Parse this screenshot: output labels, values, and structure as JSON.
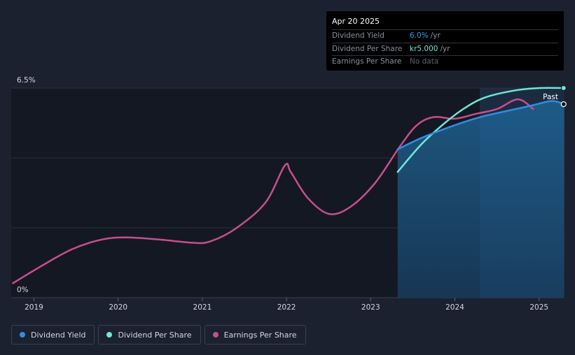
{
  "tooltip": {
    "date": "Apr 20 2025",
    "rows": [
      {
        "label": "Dividend Yield",
        "value": "6.0%",
        "unit": "/yr"
      },
      {
        "label": "Dividend Per Share",
        "value": "kr5.000",
        "unit": "/yr"
      },
      {
        "label": "Earnings Per Share",
        "value": "No data",
        "unit": ""
      }
    ]
  },
  "legend": [
    {
      "label": "Dividend Yield",
      "color": "#2d8fe3"
    },
    {
      "label": "Dividend Per Share",
      "color": "#6fe8d6"
    },
    {
      "label": "Earnings Per Share",
      "color": "#c84e8f"
    }
  ],
  "chart_data": {
    "type": "line",
    "y_max_label": "6.5%",
    "y_min_label": "0%",
    "ylim": [
      0,
      6.5
    ],
    "xlim": [
      2018.75,
      2025.3
    ],
    "x_ticks": [
      "2019",
      "2020",
      "2021",
      "2022",
      "2023",
      "2024",
      "2025"
    ],
    "past_label": "Past",
    "grid": true,
    "forecast_start": 2024.3,
    "series": [
      {
        "name": "Dividend Yield",
        "color": "#2d8fe3",
        "points": [
          [
            2023.32,
            4.6
          ],
          [
            2023.6,
            4.95
          ],
          [
            2024.0,
            5.35
          ],
          [
            2024.3,
            5.6
          ],
          [
            2024.6,
            5.78
          ],
          [
            2024.9,
            5.95
          ],
          [
            2025.15,
            6.1
          ],
          [
            2025.3,
            6.0
          ]
        ]
      },
      {
        "name": "Dividend Per Share",
        "color": "#6fe8d6",
        "points": [
          [
            2023.32,
            3.9
          ],
          [
            2023.6,
            4.75
          ],
          [
            2023.85,
            5.35
          ],
          [
            2024.1,
            5.85
          ],
          [
            2024.35,
            6.2
          ],
          [
            2024.7,
            6.42
          ],
          [
            2025.0,
            6.5
          ],
          [
            2025.3,
            6.5
          ]
        ]
      },
      {
        "name": "Earnings Per Share",
        "color": "#c84e8f",
        "points": [
          [
            2018.75,
            0.45
          ],
          [
            2019.1,
            1.0
          ],
          [
            2019.45,
            1.5
          ],
          [
            2019.8,
            1.8
          ],
          [
            2020.1,
            1.87
          ],
          [
            2020.5,
            1.8
          ],
          [
            2020.9,
            1.7
          ],
          [
            2021.1,
            1.75
          ],
          [
            2021.4,
            2.15
          ],
          [
            2021.75,
            2.95
          ],
          [
            2021.98,
            4.1
          ],
          [
            2022.05,
            3.9
          ],
          [
            2022.25,
            3.1
          ],
          [
            2022.5,
            2.6
          ],
          [
            2022.75,
            2.8
          ],
          [
            2023.05,
            3.55
          ],
          [
            2023.35,
            4.7
          ],
          [
            2023.55,
            5.35
          ],
          [
            2023.75,
            5.6
          ],
          [
            2024.0,
            5.55
          ],
          [
            2024.25,
            5.7
          ],
          [
            2024.5,
            5.85
          ],
          [
            2024.75,
            6.15
          ],
          [
            2024.93,
            5.85
          ]
        ]
      }
    ]
  }
}
